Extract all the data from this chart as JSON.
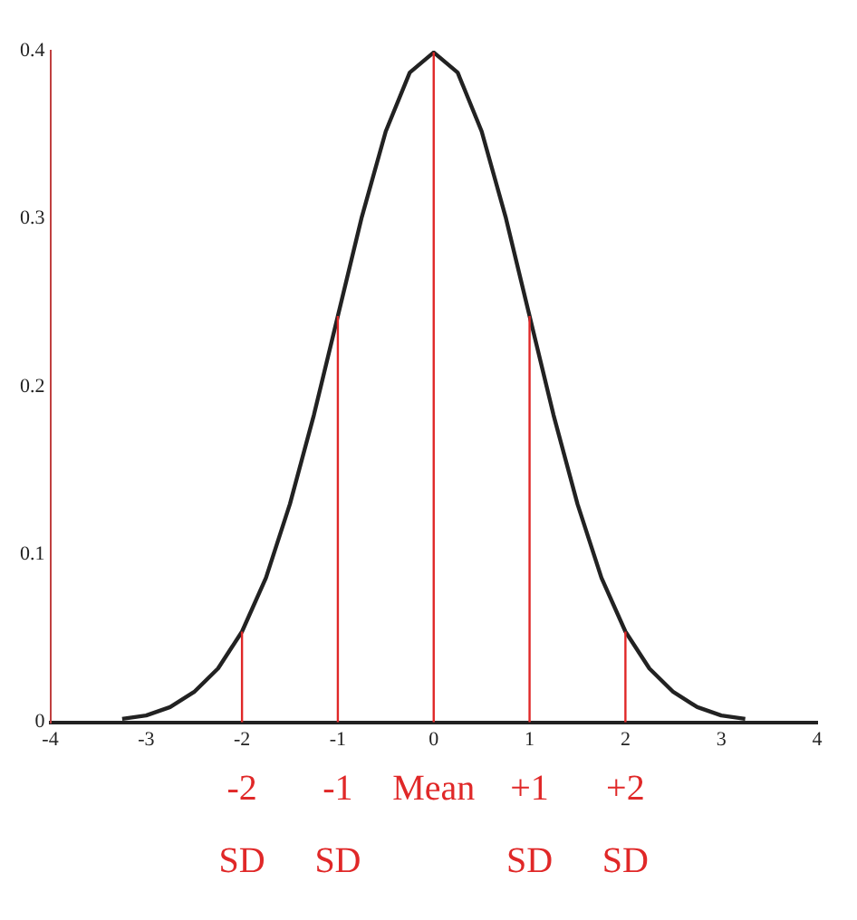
{
  "chart_data": {
    "type": "line",
    "x": [
      -3.25,
      -3,
      -2.75,
      -2.5,
      -2.25,
      -2,
      -1.75,
      -1.5,
      -1.25,
      -1,
      -0.75,
      -0.5,
      -0.25,
      0,
      0.25,
      0.5,
      0.75,
      1,
      1.25,
      1.5,
      1.75,
      2,
      2.25,
      2.5,
      2.75,
      3,
      3.25
    ],
    "series": [
      {
        "color": "#222222",
        "values": [
          0.002,
          0.004,
          0.009,
          0.018,
          0.032,
          0.054,
          0.086,
          0.13,
          0.183,
          0.242,
          0.301,
          0.352,
          0.387,
          0.399,
          0.387,
          0.352,
          0.301,
          0.242,
          0.183,
          0.13,
          0.086,
          0.054,
          0.032,
          0.018,
          0.009,
          0.004,
          0.002
        ]
      }
    ],
    "xlim": [
      -4,
      4
    ],
    "xticks": [
      -4,
      -3,
      -2,
      -1,
      0,
      1,
      2,
      3,
      4
    ],
    "ylim": [
      0,
      0.4
    ],
    "yticks": [
      0,
      0.1,
      0.2,
      0.3,
      0.4
    ],
    "ref_lines": [
      {
        "axis": "x",
        "value": -2,
        "label": "-2 SD",
        "color": "#e02828"
      },
      {
        "axis": "x",
        "value": -1,
        "label": "-1 SD",
        "color": "#e02828"
      },
      {
        "axis": "x",
        "value": 0,
        "label": "Mean",
        "color": "#e02828"
      },
      {
        "axis": "x",
        "value": 1,
        "label": "+1 SD",
        "color": "#e02828"
      },
      {
        "axis": "x",
        "value": 2,
        "label": "+2 SD",
        "color": "#e02828"
      }
    ],
    "grid": false,
    "legend": false,
    "marker": "none",
    "line_style": "solid"
  }
}
